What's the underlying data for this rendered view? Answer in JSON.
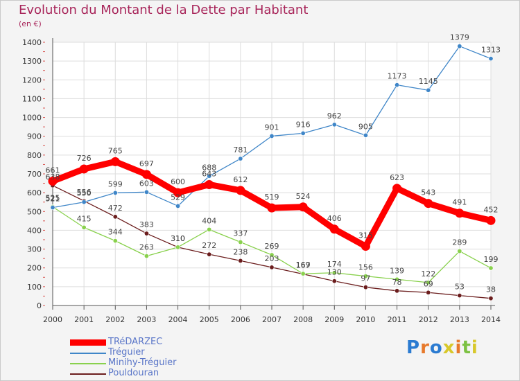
{
  "title": "Evolution du Montant de la Dette par Habitant",
  "subtitle": "(en €)",
  "brand": {
    "letters": [
      "P",
      "r",
      "o",
      "x",
      "i",
      "t",
      "i"
    ],
    "colors": [
      "#2b7bd1",
      "#e7792b",
      "#2b7bd1",
      "#d8c82a",
      "#e7792b",
      "#7cc142",
      "#d8c82a"
    ]
  },
  "chart_data": {
    "type": "line",
    "title": "Evolution du Montant de la Dette par Habitant",
    "subtitle": "(en €)",
    "xlabel": "",
    "ylabel": "",
    "x": [
      "2000",
      "2001",
      "2002",
      "2003",
      "2004",
      "2005",
      "2006",
      "2007",
      "2008",
      "2009",
      "2010",
      "2011",
      "2012",
      "2013",
      "2014"
    ],
    "ylim": [
      0,
      1400
    ],
    "yticks": [
      "0",
      "100",
      "200",
      "300",
      "400",
      "500",
      "600",
      "700",
      "800",
      "900",
      "1000",
      "1100",
      "1200",
      "1300",
      "1400"
    ],
    "grid": true,
    "legend_position": "bottom-left",
    "series": [
      {
        "name": "TRéDARZEC",
        "color": "#ff0000",
        "values": [
          661,
          726,
          765,
          697,
          600,
          643,
          612,
          519,
          524,
          406,
          315,
          623,
          543,
          491,
          452
        ],
        "labels": [
          "661",
          "726",
          "765",
          "697",
          "600",
          "643",
          "612",
          "519",
          "524",
          "406",
          "315",
          "623",
          "543",
          "491",
          "452"
        ]
      },
      {
        "name": "Tréguier",
        "color": "#3f86c8",
        "values": [
          521,
          550,
          599,
          603,
          529,
          688,
          781,
          901,
          916,
          962,
          905,
          1173,
          1145,
          1379,
          1313
        ],
        "labels": [
          "521",
          "550",
          "599",
          "603",
          "529",
          "688",
          "781",
          "901",
          "916",
          "962",
          "905",
          "1173",
          "1145",
          "1379",
          "1313"
        ]
      },
      {
        "name": "Minihy-Tréguier",
        "color": "#89d14d",
        "values": [
          525,
          415,
          344,
          263,
          310,
          404,
          337,
          269,
          169,
          174,
          156,
          139,
          122,
          289,
          199
        ],
        "labels": [
          "525",
          "415",
          "344",
          "263",
          "310",
          "404",
          "337",
          "269",
          "169",
          "174",
          "156",
          "139",
          "122",
          "289",
          "199"
        ]
      },
      {
        "name": "Pouldouran",
        "color": "#6b1d1d",
        "values": [
          638,
          556,
          472,
          383,
          310,
          272,
          238,
          203,
          167,
          130,
          97,
          78,
          69,
          53,
          38
        ],
        "labels": [
          "638",
          "556",
          "472",
          "383",
          "310",
          "272",
          "238",
          "203",
          "167",
          "130",
          "97",
          "78",
          "69",
          "53",
          "38"
        ]
      }
    ]
  }
}
